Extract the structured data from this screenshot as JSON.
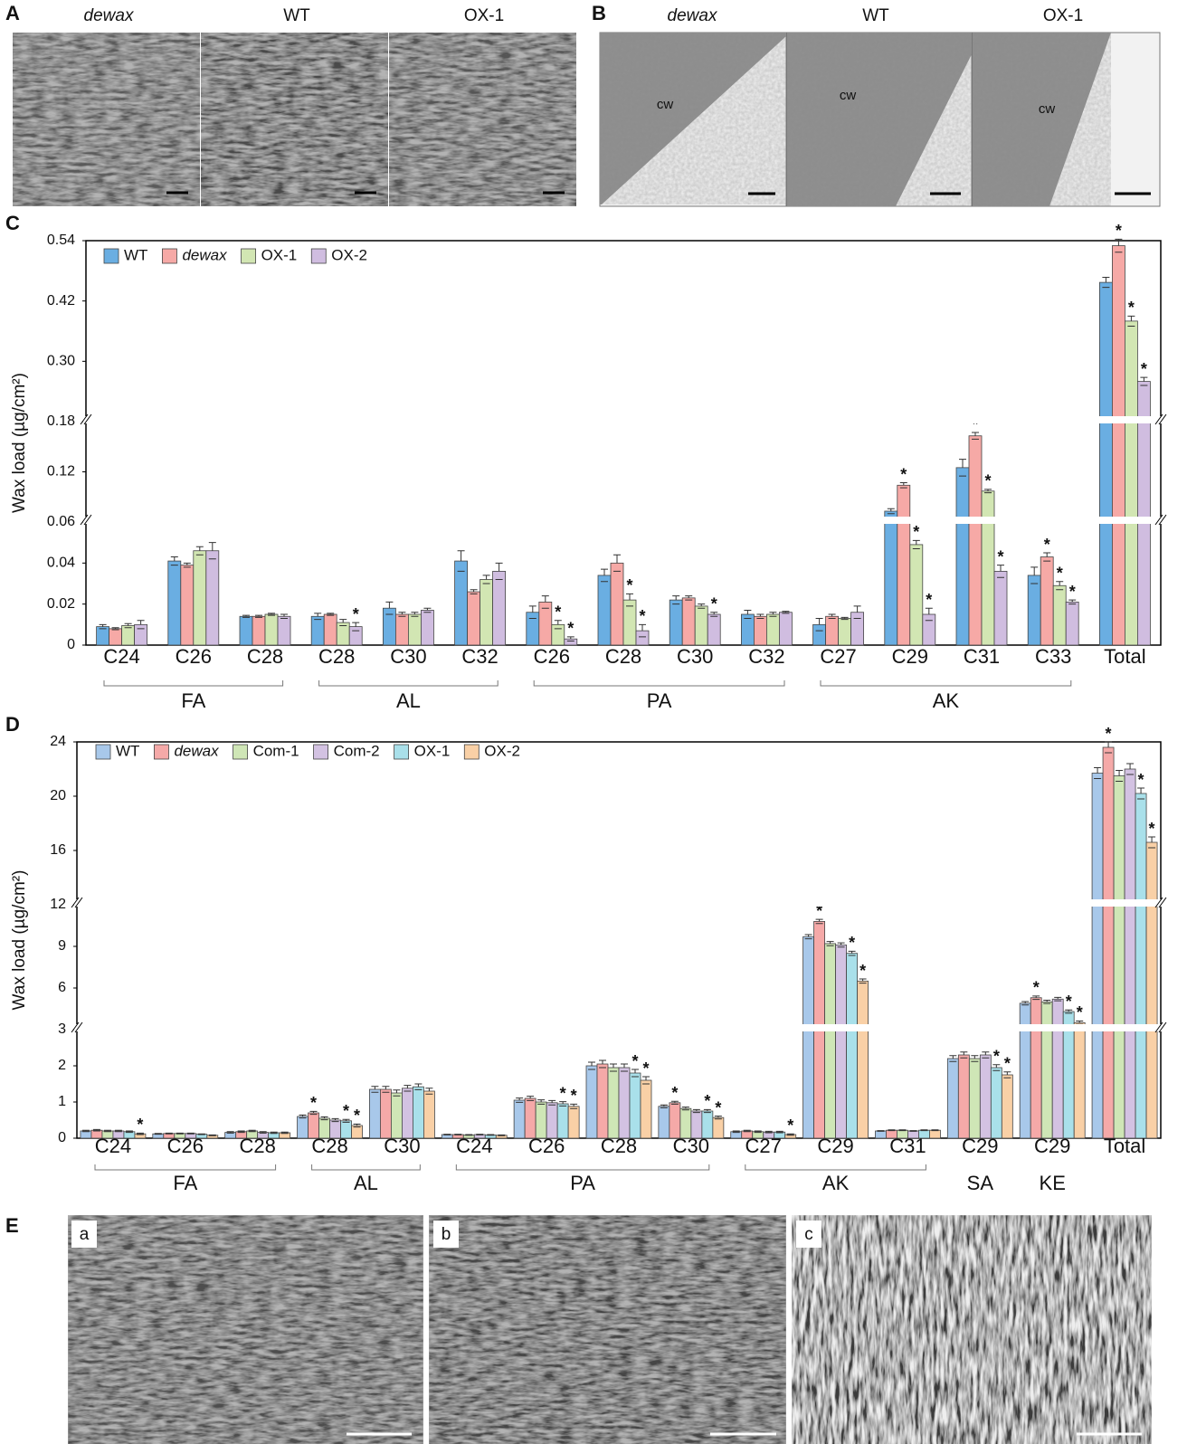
{
  "panel_a": {
    "label": "A",
    "captions": [
      "dewax",
      "WT",
      "OX-1"
    ]
  },
  "panel_b": {
    "label": "B",
    "captions": [
      "dewax",
      "WT",
      "OX-1"
    ],
    "cw": [
      "cw",
      "cw",
      "cw"
    ]
  },
  "panel_e": {
    "label": "E",
    "captions": [
      "a",
      "b",
      "c"
    ]
  },
  "chart_data": [
    {
      "type": "bar",
      "panel_label": "C",
      "ylabel": "Wax load (µg/cm²)",
      "legend": "upper left",
      "grid": false,
      "categories": [
        "C24",
        "C26",
        "C28",
        "C28",
        "C30",
        "C32",
        "C26",
        "C28",
        "C30",
        "C32",
        "C27",
        "C29",
        "C31",
        "C33",
        "Total"
      ],
      "category_groups": [
        "FA",
        "FA",
        "FA",
        "AL",
        "AL",
        "AL",
        "PA",
        "PA",
        "PA",
        "PA",
        "AK",
        "AK",
        "AK",
        "AK",
        null
      ],
      "ylim": [
        0,
        0.54
      ],
      "y_breaks": [
        0.06,
        0.18
      ],
      "yticks": [
        0,
        0.02,
        0.04,
        0.06,
        0.12,
        0.18,
        {
          "value": 0.3,
          "label": "0.30"
        },
        0.42,
        0.54
      ],
      "series": [
        {
          "name": "WT",
          "color": "#6aaee2",
          "values": [
            0.009,
            0.041,
            0.014,
            0.014,
            0.018,
            0.041,
            0.016,
            0.034,
            0.022,
            0.015,
            0.01,
            0.073,
            0.125,
            0.034,
            0.457
          ],
          "errors": [
            0.001,
            0.002,
            0.0005,
            0.0015,
            0.003,
            0.005,
            0.003,
            0.003,
            0.002,
            0.002,
            0.003,
            0.003,
            0.01,
            0.004,
            0.01
          ],
          "significance": [
            null,
            null,
            null,
            null,
            null,
            null,
            null,
            null,
            null,
            null,
            null,
            null,
            null,
            null,
            null
          ]
        },
        {
          "name": "dewax",
          "italic": true,
          "color": "#f6a9a6",
          "values": [
            0.008,
            0.039,
            0.014,
            0.015,
            0.015,
            0.026,
            0.021,
            0.04,
            0.023,
            0.014,
            0.014,
            0.104,
            0.163,
            0.043,
            0.53
          ],
          "errors": [
            0.0005,
            0.001,
            0.0005,
            0.0005,
            0.001,
            0.001,
            0.003,
            0.004,
            0.001,
            0.001,
            0.001,
            0.003,
            0.004,
            0.002,
            0.013
          ],
          "significance": [
            null,
            null,
            null,
            null,
            null,
            null,
            null,
            null,
            null,
            null,
            null,
            "*",
            "*",
            "*",
            "*"
          ]
        },
        {
          "name": "OX-1",
          "color": "#d2e6b3",
          "values": [
            0.0095,
            0.046,
            0.015,
            0.011,
            0.015,
            0.032,
            0.01,
            0.022,
            0.019,
            0.015,
            0.013,
            0.049,
            0.097,
            0.029,
            0.38
          ],
          "errors": [
            0.001,
            0.002,
            0.0005,
            0.0015,
            0.001,
            0.002,
            0.002,
            0.003,
            0.001,
            0.001,
            0.0005,
            0.002,
            0.002,
            0.002,
            0.01
          ],
          "significance": [
            null,
            null,
            null,
            null,
            null,
            null,
            "*",
            "*",
            null,
            null,
            null,
            "*",
            "*",
            "*",
            "*"
          ]
        },
        {
          "name": "OX-2",
          "color": "#d0bde0",
          "values": [
            0.01,
            0.046,
            0.014,
            0.009,
            0.017,
            0.036,
            0.003,
            0.007,
            0.015,
            0.016,
            0.016,
            0.015,
            0.036,
            0.021,
            0.26
          ],
          "errors": [
            0.002,
            0.004,
            0.001,
            0.002,
            0.001,
            0.004,
            0.001,
            0.003,
            0.001,
            0.0005,
            0.003,
            0.003,
            0.003,
            0.001,
            0.008
          ],
          "significance": [
            null,
            null,
            null,
            "*",
            null,
            null,
            "*",
            "*",
            "*",
            null,
            null,
            "*",
            "*",
            "*",
            "*"
          ]
        }
      ]
    },
    {
      "type": "bar",
      "panel_label": "D",
      "ylabel": "Wax load (µg/cm²)",
      "legend": "upper left",
      "grid": false,
      "categories": [
        "C24",
        "C26",
        "C28",
        "C28",
        "C30",
        "C24",
        "C26",
        "C28",
        "C30",
        "C27",
        "C29",
        "C31",
        "C29",
        "C29",
        "Total"
      ],
      "category_groups": [
        "FA",
        "FA",
        "FA",
        "AL",
        "AL",
        "PA",
        "PA",
        "PA",
        "PA",
        "AK",
        "AK",
        "AK",
        "SA",
        "KE",
        null
      ],
      "ylim": [
        0,
        24
      ],
      "y_breaks": [
        3,
        12
      ],
      "yticks": [
        0,
        1,
        2,
        3,
        6,
        9,
        12,
        16,
        20,
        24
      ],
      "series": [
        {
          "name": "WT",
          "color": "#a8c8ea",
          "values": [
            0.2,
            0.12,
            0.16,
            0.6,
            1.35,
            0.1,
            1.05,
            2.0,
            0.88,
            0.18,
            9.7,
            0.2,
            2.2,
            4.9,
            21.7
          ],
          "errors": [
            0.02,
            0.01,
            0.02,
            0.04,
            0.08,
            0.01,
            0.06,
            0.1,
            0.04,
            0.02,
            0.15,
            0.01,
            0.08,
            0.12,
            0.4
          ],
          "significance": [
            null,
            null,
            null,
            null,
            null,
            null,
            null,
            null,
            null,
            null,
            null,
            null,
            null,
            null,
            null
          ]
        },
        {
          "name": "dewax",
          "italic": true,
          "color": "#f5a9a8",
          "values": [
            0.22,
            0.13,
            0.18,
            0.7,
            1.35,
            0.1,
            1.1,
            2.05,
            0.98,
            0.2,
            10.8,
            0.22,
            2.3,
            5.3,
            23.6
          ],
          "errors": [
            0.02,
            0.01,
            0.02,
            0.04,
            0.08,
            0.01,
            0.06,
            0.1,
            0.04,
            0.02,
            0.15,
            0.01,
            0.08,
            0.12,
            0.4
          ],
          "significance": [
            null,
            null,
            null,
            "*",
            null,
            null,
            null,
            null,
            "*",
            null,
            "*",
            null,
            null,
            "*",
            "*"
          ]
        },
        {
          "name": "Com-1",
          "color": "#cfe6b6",
          "values": [
            0.2,
            0.13,
            0.2,
            0.55,
            1.25,
            0.09,
            1.0,
            1.95,
            0.82,
            0.18,
            9.2,
            0.22,
            2.2,
            5.0,
            21.5
          ],
          "errors": [
            0.02,
            0.01,
            0.02,
            0.04,
            0.08,
            0.01,
            0.06,
            0.1,
            0.04,
            0.02,
            0.15,
            0.01,
            0.08,
            0.12,
            0.4
          ],
          "significance": [
            null,
            null,
            null,
            null,
            null,
            null,
            null,
            null,
            null,
            null,
            null,
            null,
            null,
            null,
            null
          ]
        },
        {
          "name": "Com-2",
          "color": "#d3c2e2",
          "values": [
            0.2,
            0.13,
            0.16,
            0.5,
            1.38,
            0.1,
            0.98,
            1.95,
            0.75,
            0.17,
            9.1,
            0.2,
            2.3,
            5.2,
            22.0
          ],
          "errors": [
            0.02,
            0.01,
            0.02,
            0.04,
            0.08,
            0.01,
            0.06,
            0.1,
            0.04,
            0.02,
            0.15,
            0.01,
            0.08,
            0.12,
            0.4
          ],
          "significance": [
            null,
            null,
            null,
            null,
            null,
            null,
            null,
            null,
            null,
            null,
            null,
            null,
            null,
            null,
            null
          ]
        },
        {
          "name": "OX-1",
          "color": "#a9e0ea",
          "values": [
            0.18,
            0.11,
            0.15,
            0.48,
            1.42,
            0.09,
            0.95,
            1.8,
            0.75,
            0.17,
            8.5,
            0.22,
            1.95,
            4.3,
            20.2
          ],
          "errors": [
            0.02,
            0.01,
            0.02,
            0.04,
            0.08,
            0.01,
            0.06,
            0.1,
            0.04,
            0.02,
            0.15,
            0.01,
            0.08,
            0.12,
            0.4
          ],
          "significance": [
            null,
            null,
            null,
            "*",
            null,
            null,
            "*",
            "*",
            "*",
            null,
            "*",
            null,
            "*",
            "*",
            "*"
          ]
        },
        {
          "name": "OX-2",
          "color": "#f9d0a6",
          "values": [
            0.12,
            0.08,
            0.15,
            0.35,
            1.3,
            0.08,
            0.88,
            1.6,
            0.57,
            0.1,
            6.5,
            0.22,
            1.75,
            3.5,
            16.6
          ],
          "errors": [
            0.02,
            0.01,
            0.02,
            0.04,
            0.08,
            0.01,
            0.06,
            0.1,
            0.04,
            0.02,
            0.15,
            0.01,
            0.08,
            0.12,
            0.4
          ],
          "significance": [
            "*",
            null,
            null,
            "*",
            null,
            null,
            "*",
            "*",
            "*",
            "*",
            "*",
            null,
            "*",
            "*",
            "*"
          ]
        }
      ]
    }
  ]
}
